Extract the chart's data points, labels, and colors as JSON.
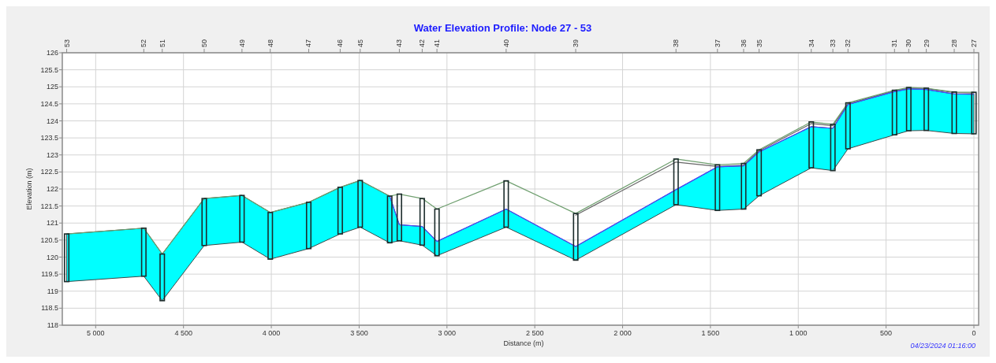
{
  "chart_data": {
    "type": "line",
    "title": "Water Elevation Profile: Node 27 - 53",
    "xlabel": "Distance (m)",
    "ylabel": "Elevation (m)",
    "annotations": [
      "04/23/2024 01:16:00",
      "53",
      "52",
      "51",
      "50",
      "49",
      "48",
      "47",
      "46",
      "45",
      "43",
      "42",
      "41",
      "40",
      "39",
      "38",
      "37",
      "36",
      "35",
      "34",
      "33",
      "32",
      "31",
      "30",
      "29",
      "28",
      "27"
    ],
    "xlim": [
      5190,
      -27
    ],
    "xticks": [
      {
        "value": 5000,
        "label": "5 000"
      },
      {
        "value": 4500,
        "label": "4 500"
      },
      {
        "value": 4000,
        "label": "4 000"
      },
      {
        "value": 3500,
        "label": "3 500"
      },
      {
        "value": 3000,
        "label": "3 000"
      },
      {
        "value": 2500,
        "label": "2 500"
      },
      {
        "value": 2000,
        "label": "2 000"
      },
      {
        "value": 1500,
        "label": "1 500"
      },
      {
        "value": 1000,
        "label": "1 000"
      },
      500,
      0
    ],
    "ylim": [
      118,
      126
    ],
    "yticks": [
      118,
      118.5,
      119,
      119.5,
      120,
      120.5,
      121,
      121.5,
      122,
      122.5,
      123,
      123.5,
      124,
      124.5,
      125,
      125.5,
      126
    ],
    "grid": true,
    "x": [
      5165,
      4726,
      4621,
      4382,
      4167,
      4006,
      3787,
      3608,
      3494,
      3326,
      3271,
      3141,
      3057,
      2663,
      2267,
      1696,
      1460,
      1311,
      1223,
      926,
      803,
      717,
      452,
      371,
      271,
      112,
      0
    ],
    "series": [
      {
        "color": "#666666",
        "values": [
          null,
          null,
          null,
          null,
          null,
          null,
          null,
          null,
          null,
          null,
          null,
          null,
          null,
          null,
          121.23,
          122.79,
          122.66,
          122.7,
          123.12,
          123.92,
          123.86,
          124.5,
          124.88,
          124.96,
          124.95,
          124.83,
          124.82
        ]
      },
      {
        "color": "#6f9f6f",
        "values": [
          120.68,
          120.85,
          120.09,
          121.72,
          121.81,
          121.31,
          121.61,
          122.05,
          122.25,
          121.79,
          121.85,
          121.72,
          121.41,
          122.24,
          121.28,
          122.88,
          122.71,
          122.75,
          123.15,
          123.97,
          123.9,
          124.53,
          124.9,
          124.98,
          124.96,
          124.85,
          124.84
        ]
      },
      {
        "color": "#4a4aff",
        "values": [
          null,
          null,
          null,
          null,
          null,
          null,
          null,
          null,
          null,
          121.79,
          120.95,
          120.9,
          120.46,
          121.41,
          120.31,
          121.98,
          122.65,
          122.68,
          123.09,
          123.83,
          123.78,
          124.48,
          124.86,
          124.94,
          124.92,
          124.79,
          124.78
        ],
        "lower": [
          119.28,
          119.44,
          118.72,
          120.34,
          120.44,
          119.94,
          120.25,
          120.68,
          120.88,
          120.42,
          120.48,
          120.35,
          120.04,
          120.88,
          119.91,
          121.54,
          121.37,
          121.41,
          121.8,
          122.62,
          122.54,
          123.18,
          123.59,
          123.71,
          123.72,
          123.63,
          123.62
        ],
        "upper": [
          120.68,
          120.85,
          120.09,
          121.72,
          121.81,
          121.31,
          121.61,
          122.05,
          122.25,
          121.79,
          120.95,
          120.9,
          120.46,
          121.41,
          120.31,
          121.98,
          122.65,
          122.68,
          123.09,
          123.83,
          123.78,
          124.48,
          124.86,
          124.94,
          124.92,
          124.79,
          124.78
        ]
      },
      {
        "type": "bar",
        "color": "#1c2c2c",
        "x": [
          5165,
          4726,
          4621,
          4382,
          4167,
          4006,
          3787,
          3608,
          3494,
          3271,
          3141,
          3057,
          2663,
          2267,
          1696,
          1460,
          1311,
          1223,
          926,
          803,
          717,
          452,
          371,
          271,
          112,
          0
        ],
        "base": [
          119.28,
          119.44,
          118.72,
          120.34,
          120.44,
          119.94,
          120.25,
          120.68,
          120.88,
          120.48,
          120.35,
          120.04,
          120.88,
          119.91,
          121.54,
          121.37,
          121.41,
          121.8,
          122.62,
          122.54,
          123.18,
          123.59,
          123.71,
          123.72,
          123.63,
          123.62
        ],
        "values": [
          1.4,
          1.41,
          1.37,
          1.38,
          1.37,
          1.37,
          1.36,
          1.37,
          1.37,
          1.37,
          1.37,
          1.37,
          1.36,
          1.37,
          1.34,
          1.34,
          1.34,
          1.35,
          1.35,
          1.36,
          1.35,
          1.31,
          1.27,
          1.24,
          1.22,
          1.22
        ]
      },
      {
        "type": "bar",
        "color": "#1c2c2c",
        "x": [
          3326
        ],
        "base": [
          120.42
        ],
        "values": [
          1.37
        ]
      }
    ]
  }
}
